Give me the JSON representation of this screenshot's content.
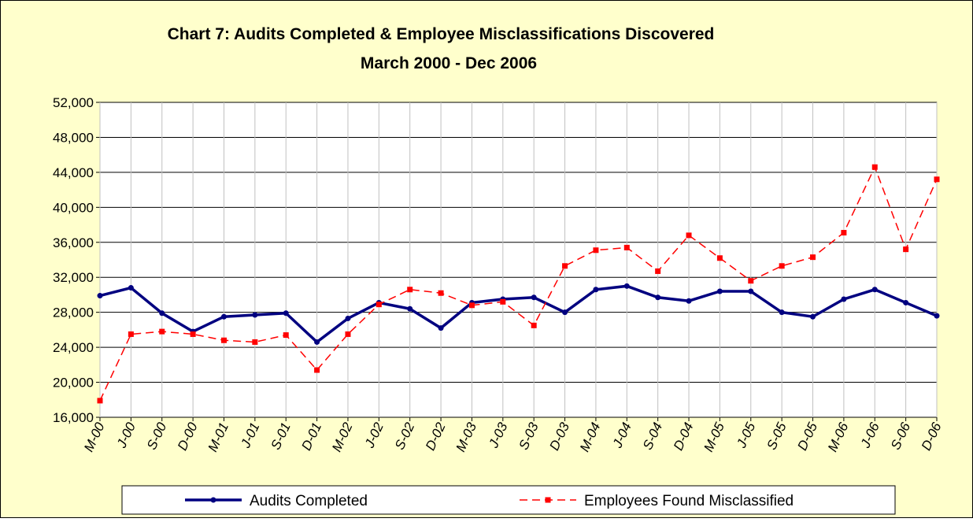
{
  "chart_data": {
    "type": "line",
    "title": "Chart 7: Audits Completed & Employee Misclassifications Discovered",
    "subtitle": "March 2000 - Dec 2006",
    "categories": [
      "M-00",
      "J-00",
      "S-00",
      "D-00",
      "M-01",
      "J-01",
      "S-01",
      "D-01",
      "M-02",
      "J-02",
      "S-02",
      "D-02",
      "M-03",
      "J-03",
      "S-03",
      "D-03",
      "M-04",
      "J-04",
      "S-04",
      "D-04",
      "M-05",
      "J-05",
      "S-05",
      "D-05",
      "M-06",
      "J-06",
      "S-06",
      "D-06"
    ],
    "series": [
      {
        "name": "Audits Completed",
        "color": "#000080",
        "dash": false,
        "marker": "circle",
        "values": [
          29900,
          30800,
          27900,
          25800,
          27500,
          27700,
          27900,
          24600,
          27300,
          29100,
          28400,
          26200,
          29100,
          29500,
          29700,
          28000,
          30600,
          31000,
          29700,
          29300,
          30400,
          30400,
          28000,
          27500,
          29500,
          30600,
          29100,
          27600
        ]
      },
      {
        "name": "Employees Found Misclassified",
        "color": "#ff0000",
        "dash": true,
        "marker": "square",
        "values": [
          17900,
          25500,
          25800,
          25500,
          24800,
          24600,
          25400,
          21400,
          25500,
          28900,
          30600,
          30200,
          28800,
          29200,
          26500,
          33300,
          35100,
          35400,
          32700,
          36800,
          34200,
          31600,
          33300,
          34300,
          37100,
          44600,
          35200,
          43200
        ]
      }
    ],
    "ylim": [
      16000,
      52000
    ],
    "yticks": [
      {
        "value": 16000,
        "label": "16,000"
      },
      {
        "value": 20000,
        "label": "20,000"
      },
      {
        "value": 24000,
        "label": "24,000"
      },
      {
        "value": 28000,
        "label": "28,000"
      },
      {
        "value": 32000,
        "label": "32,000"
      },
      {
        "value": 36000,
        "label": "36,000"
      },
      {
        "value": 40000,
        "label": "40,000"
      },
      {
        "value": 44000,
        "label": "44,000"
      },
      {
        "value": 48000,
        "label": "48,000"
      },
      {
        "value": 52000,
        "label": "52,000"
      }
    ],
    "grid": true,
    "legend": "bottom"
  }
}
